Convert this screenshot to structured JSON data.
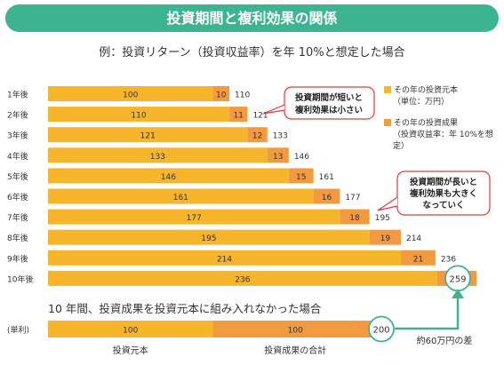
{
  "header": {
    "title": "投資期間と複利効果の関係"
  },
  "subtitle": "例：投資リターン（投資収益率）を年 10%と想定した場合",
  "colors": {
    "principal": "#f7b52c",
    "gain": "#f29a40",
    "accent": "#3cb491",
    "callout_border": "#e8383d"
  },
  "chart_data": [
    {
      "type": "bar",
      "orientation": "horizontal",
      "stacked": true,
      "categories": [
        "1年後",
        "2年後",
        "3年後",
        "4年後",
        "5年後",
        "6年後",
        "7年後",
        "8年後",
        "9年後",
        "10年後"
      ],
      "series": [
        {
          "name": "その年の投資元本",
          "values": [
            100,
            110,
            121,
            133,
            146,
            161,
            177,
            195,
            214,
            236
          ]
        },
        {
          "name": "その年の投資成果",
          "values": [
            10,
            11,
            12,
            13,
            15,
            16,
            18,
            19,
            21,
            24
          ]
        }
      ],
      "totals": [
        110,
        121,
        133,
        146,
        161,
        177,
        195,
        214,
        236,
        259
      ],
      "legend_position": "right",
      "grid": false
    },
    {
      "type": "bar",
      "orientation": "horizontal",
      "stacked": true,
      "categories": [
        "(単利)"
      ],
      "series": [
        {
          "name": "投資元本",
          "values": [
            100
          ]
        },
        {
          "name": "投資成果の合計",
          "values": [
            100
          ]
        }
      ],
      "totals": [
        200
      ]
    }
  ],
  "legend": {
    "principal_label": "その年の投資元本",
    "principal_note": "（単位：万円）",
    "gain_label": "その年の投資成果",
    "gain_note": "（投資収益率：年 10%を想定）"
  },
  "callouts": {
    "short": [
      "投資期間が短いと",
      "複利効果は小さい"
    ],
    "long": [
      "投資期間が長いと",
      "複利効果も大きく",
      "なっていく"
    ]
  },
  "lower": {
    "title": "10 年間、投資成果を投資元本に組み入れなかった場合",
    "row_label": "(単利)",
    "principal_caption": "投資元本",
    "gain_caption": "投資成果の合計",
    "difference_note": "約60万円の差"
  }
}
